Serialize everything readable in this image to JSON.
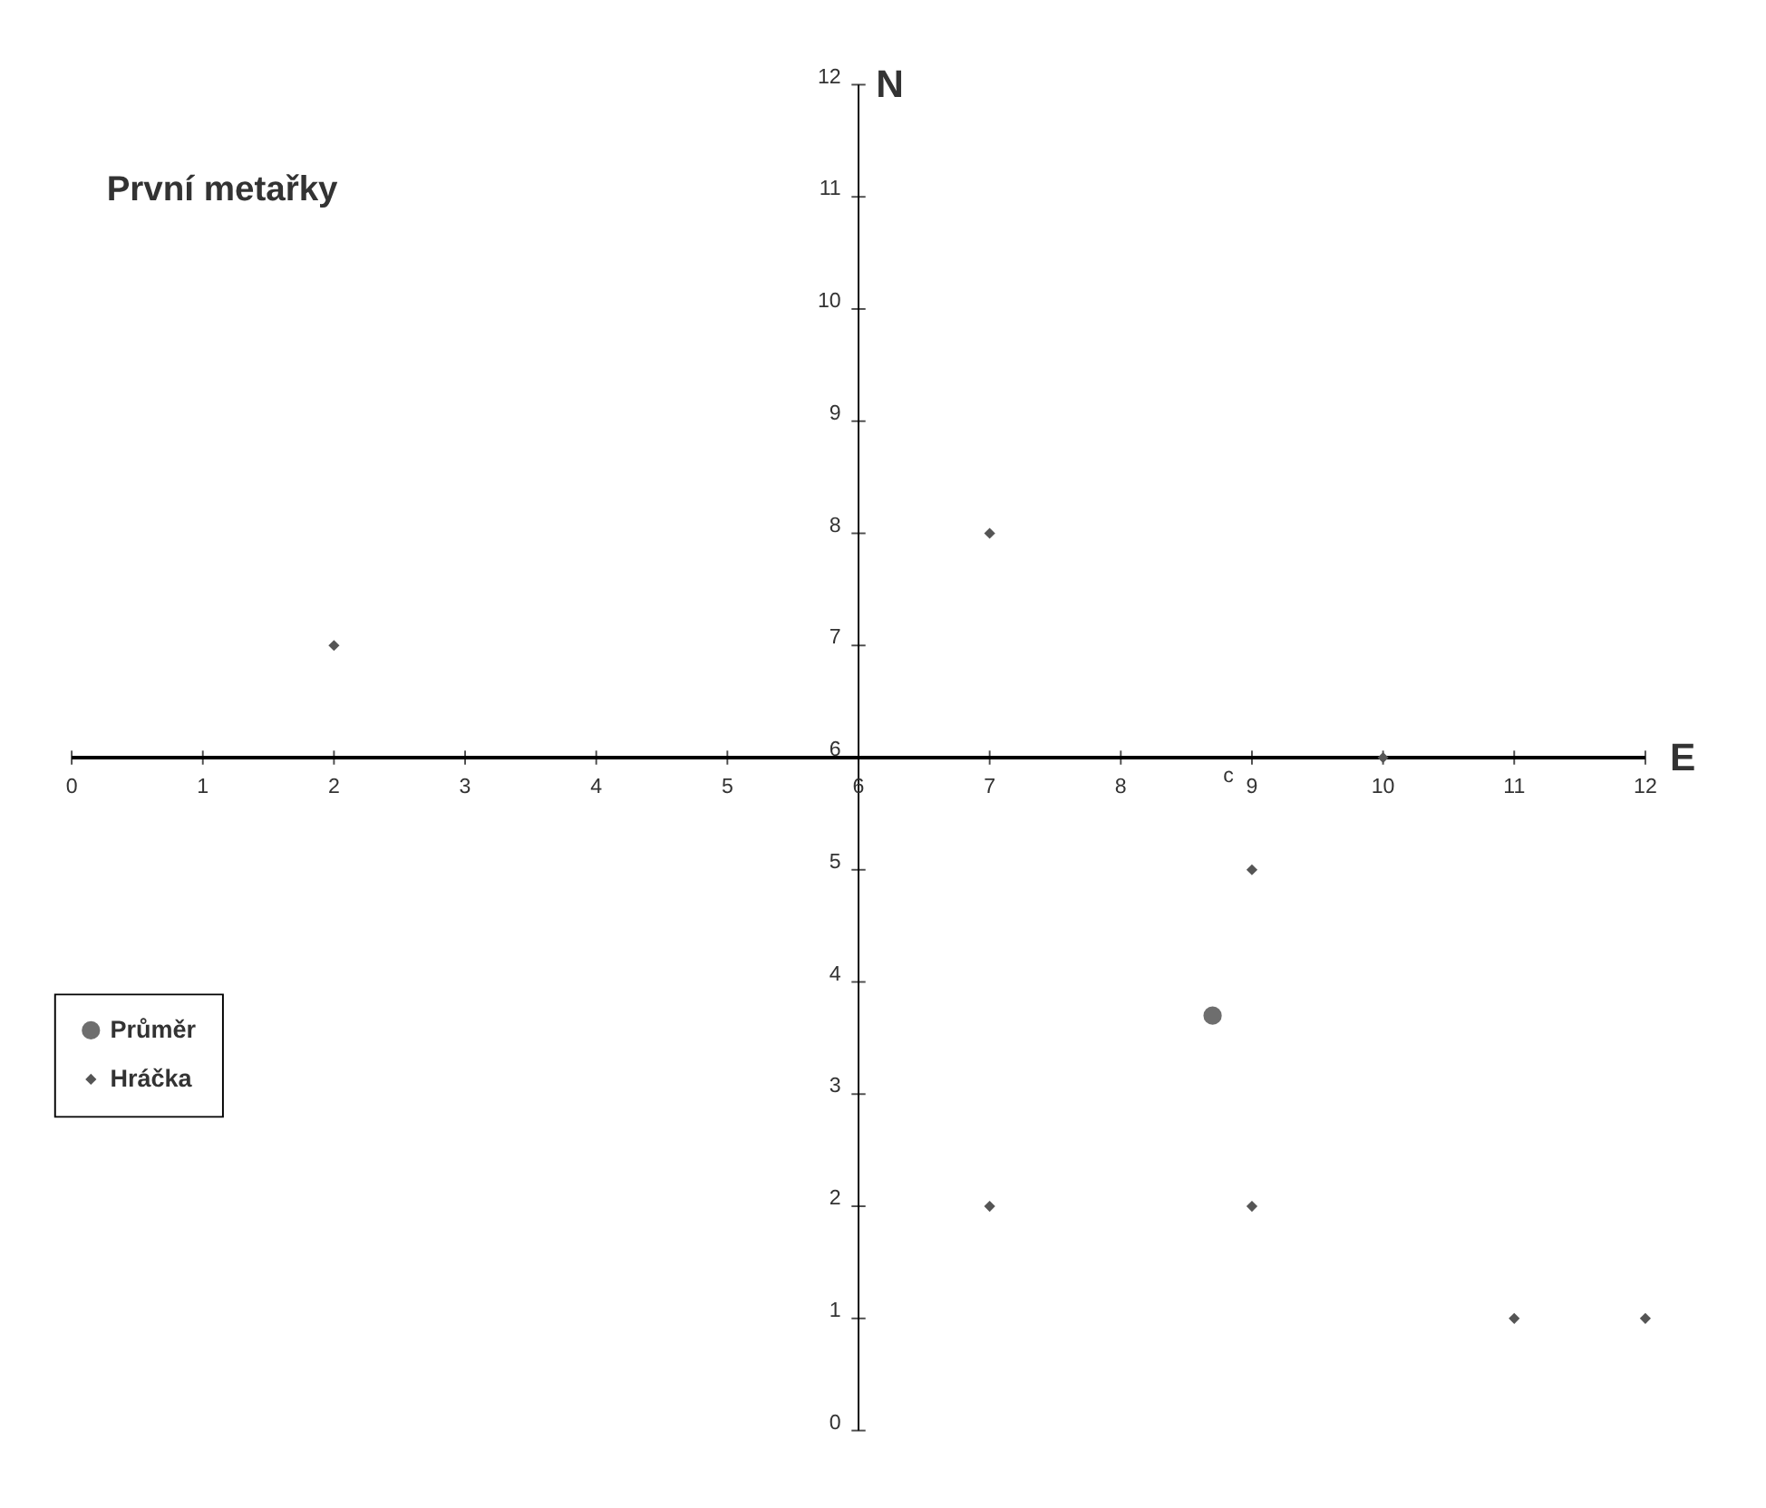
{
  "chart_data": {
    "type": "scatter",
    "title": "První metařky",
    "xlabel": "E",
    "ylabel": "N",
    "xlim": [
      0,
      12
    ],
    "ylim": [
      0,
      12
    ],
    "xticks": [
      0,
      1,
      2,
      3,
      4,
      5,
      6,
      7,
      8,
      9,
      10,
      11,
      12
    ],
    "yticks": [
      0,
      1,
      2,
      3,
      4,
      5,
      6,
      7,
      8,
      9,
      10,
      11,
      12
    ],
    "series": [
      {
        "name": "Průměr",
        "color": "#6e6e6e",
        "marker": "circle",
        "x": [
          8.7
        ],
        "values": [
          3.7
        ]
      },
      {
        "name": "Hráčka",
        "color": "#555555",
        "marker": "diamond",
        "x": [
          2,
          7,
          10,
          9,
          7,
          9,
          11,
          12
        ],
        "values": [
          7,
          8,
          6,
          5,
          2,
          2,
          1,
          1
        ]
      }
    ],
    "annotations": [
      "c"
    ],
    "legend": "bottom left",
    "grid": false
  }
}
